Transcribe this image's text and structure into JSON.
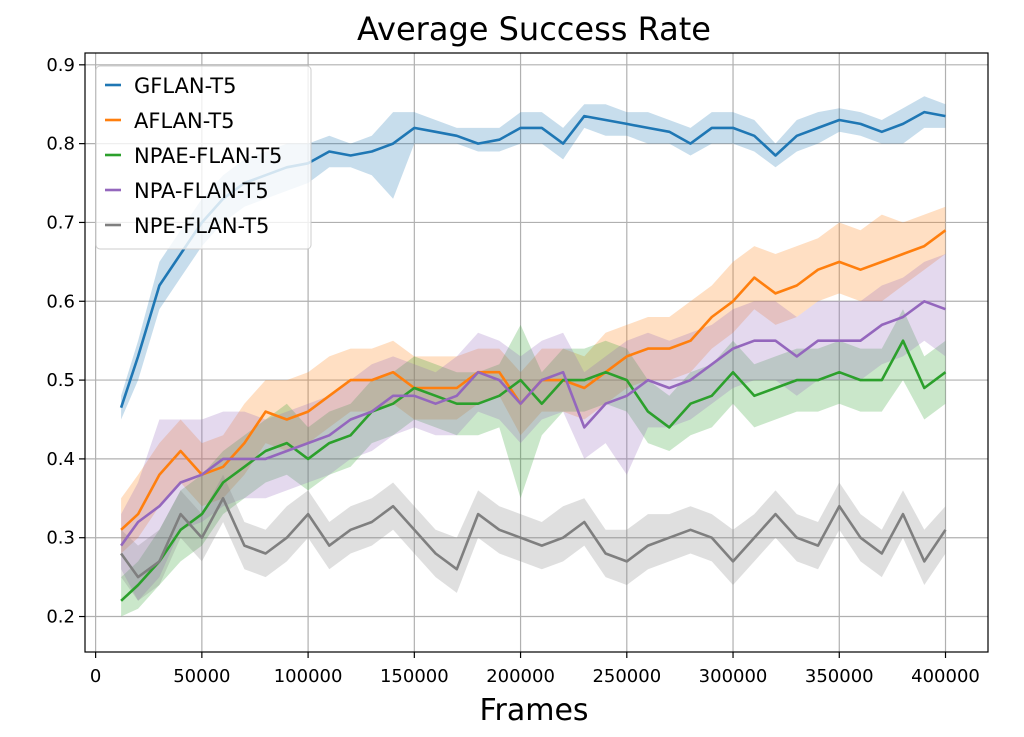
{
  "chart_data": {
    "type": "line",
    "title": "Average Success Rate",
    "xlabel": "Frames",
    "ylabel": "",
    "xlim": [
      -5000,
      420000
    ],
    "ylim": [
      0.155,
      0.915
    ],
    "x_ticks": [
      0,
      50000,
      100000,
      150000,
      200000,
      250000,
      300000,
      350000,
      400000
    ],
    "x_tick_labels": [
      "0",
      "50000",
      "100000",
      "150000",
      "200000",
      "250000",
      "300000",
      "350000",
      "400000"
    ],
    "y_ticks": [
      0.2,
      0.3,
      0.4,
      0.5,
      0.6,
      0.7,
      0.8,
      0.9
    ],
    "y_tick_labels": [
      "0.2",
      "0.3",
      "0.4",
      "0.5",
      "0.6",
      "0.7",
      "0.8",
      "0.9"
    ],
    "grid": true,
    "legend_position": "top-left",
    "x": [
      12000,
      20000,
      30000,
      40000,
      50000,
      60000,
      70000,
      80000,
      90000,
      100000,
      110000,
      120000,
      130000,
      140000,
      150000,
      160000,
      170000,
      180000,
      190000,
      200000,
      210000,
      220000,
      230000,
      240000,
      250000,
      260000,
      270000,
      280000,
      290000,
      300000,
      310000,
      320000,
      330000,
      340000,
      350000,
      360000,
      370000,
      380000,
      390000,
      400000
    ],
    "series": [
      {
        "name": "GFLAN-T5",
        "color": "#1f77b4",
        "values": [
          0.465,
          0.53,
          0.62,
          0.66,
          0.7,
          0.73,
          0.75,
          0.76,
          0.77,
          0.775,
          0.79,
          0.785,
          0.79,
          0.8,
          0.82,
          0.815,
          0.81,
          0.8,
          0.805,
          0.82,
          0.82,
          0.8,
          0.835,
          0.83,
          0.825,
          0.82,
          0.815,
          0.8,
          0.82,
          0.82,
          0.81,
          0.785,
          0.81,
          0.82,
          0.83,
          0.825,
          0.815,
          0.825,
          0.84,
          0.835
        ],
        "upper": [
          0.48,
          0.55,
          0.65,
          0.69,
          0.73,
          0.76,
          0.78,
          0.79,
          0.8,
          0.8,
          0.81,
          0.8,
          0.81,
          0.84,
          0.84,
          0.83,
          0.82,
          0.82,
          0.82,
          0.84,
          0.84,
          0.82,
          0.85,
          0.85,
          0.84,
          0.84,
          0.83,
          0.82,
          0.84,
          0.84,
          0.83,
          0.8,
          0.83,
          0.84,
          0.845,
          0.84,
          0.83,
          0.845,
          0.86,
          0.85
        ],
        "lower": [
          0.45,
          0.5,
          0.59,
          0.63,
          0.67,
          0.7,
          0.72,
          0.73,
          0.74,
          0.75,
          0.77,
          0.77,
          0.76,
          0.73,
          0.8,
          0.8,
          0.8,
          0.79,
          0.79,
          0.8,
          0.8,
          0.78,
          0.82,
          0.81,
          0.81,
          0.8,
          0.8,
          0.785,
          0.8,
          0.8,
          0.79,
          0.77,
          0.79,
          0.8,
          0.815,
          0.81,
          0.8,
          0.8,
          0.82,
          0.82
        ]
      },
      {
        "name": "AFLAN-T5",
        "color": "#ff7f0e",
        "values": [
          0.31,
          0.33,
          0.38,
          0.41,
          0.38,
          0.39,
          0.42,
          0.46,
          0.45,
          0.46,
          0.48,
          0.5,
          0.5,
          0.51,
          0.49,
          0.49,
          0.49,
          0.51,
          0.51,
          0.47,
          0.5,
          0.5,
          0.49,
          0.51,
          0.53,
          0.54,
          0.54,
          0.55,
          0.58,
          0.6,
          0.63,
          0.61,
          0.62,
          0.64,
          0.65,
          0.64,
          0.65,
          0.66,
          0.67,
          0.69
        ],
        "upper": [
          0.35,
          0.38,
          0.42,
          0.45,
          0.42,
          0.43,
          0.47,
          0.5,
          0.5,
          0.51,
          0.53,
          0.54,
          0.54,
          0.55,
          0.53,
          0.53,
          0.53,
          0.54,
          0.54,
          0.51,
          0.54,
          0.54,
          0.53,
          0.56,
          0.57,
          0.58,
          0.58,
          0.6,
          0.62,
          0.65,
          0.67,
          0.66,
          0.67,
          0.68,
          0.7,
          0.69,
          0.71,
          0.7,
          0.71,
          0.72
        ],
        "lower": [
          0.28,
          0.3,
          0.34,
          0.37,
          0.34,
          0.35,
          0.38,
          0.42,
          0.41,
          0.42,
          0.44,
          0.46,
          0.46,
          0.47,
          0.45,
          0.45,
          0.45,
          0.47,
          0.48,
          0.43,
          0.46,
          0.46,
          0.45,
          0.47,
          0.49,
          0.5,
          0.5,
          0.51,
          0.54,
          0.56,
          0.59,
          0.57,
          0.58,
          0.6,
          0.61,
          0.6,
          0.6,
          0.62,
          0.64,
          0.66
        ]
      },
      {
        "name": "NPAE-FLAN-T5",
        "color": "#2ca02c",
        "values": [
          0.22,
          0.24,
          0.27,
          0.31,
          0.33,
          0.37,
          0.39,
          0.41,
          0.42,
          0.4,
          0.42,
          0.43,
          0.46,
          0.47,
          0.49,
          0.48,
          0.47,
          0.47,
          0.48,
          0.5,
          0.47,
          0.5,
          0.5,
          0.51,
          0.5,
          0.46,
          0.44,
          0.47,
          0.48,
          0.51,
          0.48,
          0.49,
          0.5,
          0.5,
          0.51,
          0.5,
          0.5,
          0.55,
          0.49,
          0.51
        ],
        "upper": [
          0.25,
          0.27,
          0.31,
          0.36,
          0.38,
          0.41,
          0.43,
          0.45,
          0.47,
          0.44,
          0.46,
          0.47,
          0.5,
          0.51,
          0.53,
          0.52,
          0.51,
          0.51,
          0.52,
          0.57,
          0.51,
          0.54,
          0.54,
          0.55,
          0.54,
          0.5,
          0.48,
          0.51,
          0.52,
          0.55,
          0.52,
          0.53,
          0.54,
          0.54,
          0.55,
          0.54,
          0.54,
          0.59,
          0.53,
          0.55
        ],
        "lower": [
          0.2,
          0.21,
          0.24,
          0.27,
          0.29,
          0.33,
          0.35,
          0.37,
          0.38,
          0.36,
          0.38,
          0.39,
          0.42,
          0.43,
          0.45,
          0.44,
          0.43,
          0.43,
          0.44,
          0.35,
          0.43,
          0.46,
          0.46,
          0.47,
          0.46,
          0.42,
          0.41,
          0.43,
          0.44,
          0.47,
          0.44,
          0.45,
          0.46,
          0.46,
          0.47,
          0.46,
          0.46,
          0.5,
          0.45,
          0.47
        ]
      },
      {
        "name": "NPA-FLAN-T5",
        "color": "#9467bd",
        "values": [
          0.29,
          0.32,
          0.34,
          0.37,
          0.38,
          0.4,
          0.4,
          0.4,
          0.41,
          0.42,
          0.43,
          0.45,
          0.46,
          0.48,
          0.48,
          0.47,
          0.48,
          0.51,
          0.5,
          0.47,
          0.5,
          0.51,
          0.44,
          0.47,
          0.48,
          0.5,
          0.49,
          0.5,
          0.52,
          0.54,
          0.55,
          0.55,
          0.53,
          0.55,
          0.55,
          0.55,
          0.57,
          0.58,
          0.6,
          0.59
        ],
        "upper": [
          0.33,
          0.37,
          0.45,
          0.45,
          0.45,
          0.46,
          0.46,
          0.45,
          0.46,
          0.47,
          0.48,
          0.5,
          0.52,
          0.53,
          0.52,
          0.51,
          0.53,
          0.56,
          0.55,
          0.53,
          0.55,
          0.56,
          0.51,
          0.53,
          0.55,
          0.56,
          0.55,
          0.56,
          0.57,
          0.59,
          0.6,
          0.6,
          0.58,
          0.6,
          0.6,
          0.6,
          0.62,
          0.63,
          0.65,
          0.66
        ],
        "lower": [
          0.26,
          0.22,
          0.25,
          0.31,
          0.32,
          0.34,
          0.35,
          0.35,
          0.36,
          0.37,
          0.38,
          0.4,
          0.41,
          0.43,
          0.44,
          0.43,
          0.43,
          0.46,
          0.45,
          0.42,
          0.45,
          0.46,
          0.4,
          0.42,
          0.38,
          0.44,
          0.44,
          0.45,
          0.47,
          0.49,
          0.5,
          0.5,
          0.48,
          0.5,
          0.5,
          0.5,
          0.52,
          0.53,
          0.55,
          0.53
        ]
      },
      {
        "name": "NPE-FLAN-T5",
        "color": "#7f7f7f",
        "values": [
          0.28,
          0.25,
          0.27,
          0.33,
          0.3,
          0.35,
          0.29,
          0.28,
          0.3,
          0.33,
          0.29,
          0.31,
          0.32,
          0.34,
          0.31,
          0.28,
          0.26,
          0.33,
          0.31,
          0.3,
          0.29,
          0.3,
          0.32,
          0.28,
          0.27,
          0.29,
          0.3,
          0.31,
          0.3,
          0.27,
          0.3,
          0.33,
          0.3,
          0.29,
          0.34,
          0.3,
          0.28,
          0.33,
          0.27,
          0.31
        ],
        "upper": [
          0.31,
          0.29,
          0.31,
          0.36,
          0.33,
          0.38,
          0.32,
          0.31,
          0.34,
          0.36,
          0.32,
          0.34,
          0.35,
          0.37,
          0.34,
          0.31,
          0.3,
          0.36,
          0.34,
          0.33,
          0.32,
          0.34,
          0.35,
          0.31,
          0.31,
          0.33,
          0.33,
          0.34,
          0.33,
          0.31,
          0.33,
          0.36,
          0.33,
          0.32,
          0.37,
          0.33,
          0.31,
          0.36,
          0.31,
          0.34
        ],
        "lower": [
          0.25,
          0.22,
          0.24,
          0.3,
          0.27,
          0.32,
          0.26,
          0.25,
          0.27,
          0.3,
          0.26,
          0.28,
          0.29,
          0.31,
          0.28,
          0.25,
          0.23,
          0.3,
          0.28,
          0.27,
          0.26,
          0.27,
          0.29,
          0.25,
          0.24,
          0.26,
          0.27,
          0.28,
          0.27,
          0.24,
          0.27,
          0.3,
          0.27,
          0.26,
          0.31,
          0.27,
          0.25,
          0.3,
          0.24,
          0.28
        ]
      }
    ]
  }
}
